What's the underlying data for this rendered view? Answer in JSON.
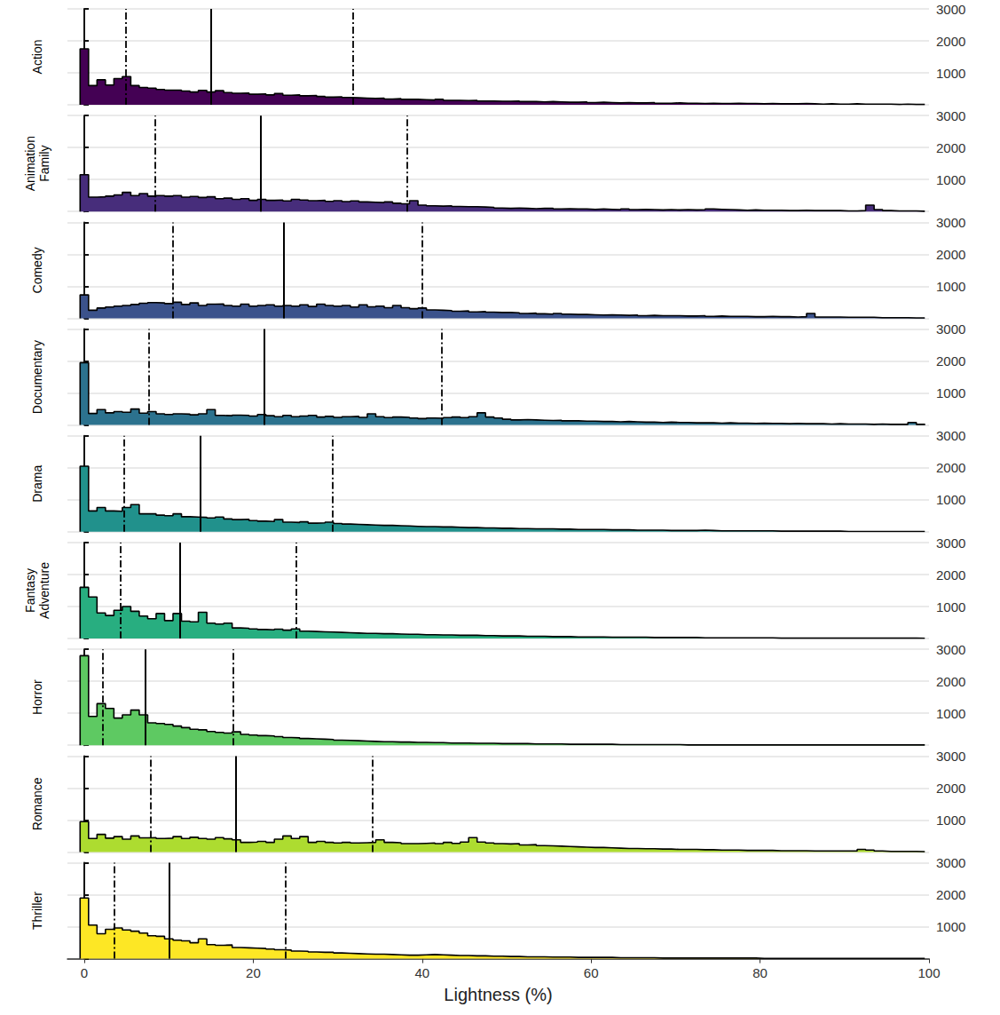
{
  "chart_data": {
    "type": "histogram",
    "x_label": "Lightness (%)",
    "xlim": [
      -2,
      100
    ],
    "xticks": [
      0,
      20,
      40,
      60,
      80,
      100
    ],
    "ylim": [
      0,
      3000
    ],
    "yticks": [
      1000,
      2000,
      3000
    ],
    "grid": true,
    "bins": [
      -0.5,
      0.5,
      1.5,
      2.5,
      3.5,
      4.5,
      5.5,
      6.5,
      7.5,
      8.5,
      9.5,
      10.5,
      11.5,
      12.5,
      13.5,
      14.5,
      15.5,
      16.5,
      17.5,
      18.5,
      19.5,
      20.5,
      21.5,
      22.5,
      23.5,
      24.5,
      25.5,
      26.5,
      27.5,
      28.5,
      29.5,
      30.5,
      31.5,
      32.5,
      33.5,
      34.5,
      35.5,
      36.5,
      37.5,
      38.5,
      39.5,
      40.5,
      41.5,
      42.5,
      43.5,
      44.5,
      45.5,
      46.5,
      47.5,
      48.5,
      49.5,
      50.5,
      51.5,
      52.5,
      53.5,
      54.5,
      55.5,
      56.5,
      57.5,
      58.5,
      59.5,
      60.5,
      61.5,
      62.5,
      63.5,
      64.5,
      65.5,
      66.5,
      67.5,
      68.5,
      69.5,
      70.5,
      71.5,
      72.5,
      73.5,
      74.5,
      75.5,
      76.5,
      77.5,
      78.5,
      79.5,
      80.5,
      81.5,
      82.5,
      83.5,
      84.5,
      85.5,
      86.5,
      87.5,
      88.5,
      89.5,
      90.5,
      91.5,
      92.5,
      93.5,
      94.5,
      95.5,
      96.5,
      97.5,
      98.5,
      99.5
    ],
    "series": [
      {
        "name": "Action",
        "color": "#440154",
        "quartiles": [
          4.9,
          15.0,
          31.8
        ],
        "values": [
          1750,
          600,
          780,
          620,
          820,
          880,
          600,
          540,
          520,
          480,
          460,
          460,
          430,
          400,
          450,
          400,
          440,
          380,
          360,
          370,
          330,
          340,
          310,
          350,
          300,
          310,
          280,
          290,
          260,
          240,
          250,
          230,
          220,
          210,
          200,
          210,
          180,
          190,
          170,
          170,
          160,
          150,
          170,
          140,
          140,
          130,
          140,
          120,
          120,
          110,
          110,
          120,
          100,
          100,
          90,
          100,
          90,
          80,
          80,
          90,
          70,
          80,
          70,
          60,
          70,
          60,
          60,
          70,
          50,
          50,
          60,
          50,
          50,
          40,
          50,
          40,
          40,
          50,
          40,
          40,
          30,
          40,
          30,
          30,
          30,
          40,
          30,
          20,
          30,
          20,
          20,
          30,
          20,
          20,
          20,
          20,
          10,
          20,
          10,
          10
        ]
      },
      {
        "name": "Animation Family",
        "color": "#472d7b",
        "quartiles": [
          8.4,
          20.9,
          38.2
        ],
        "values": [
          1150,
          450,
          460,
          480,
          520,
          600,
          500,
          560,
          480,
          500,
          480,
          500,
          450,
          470,
          440,
          460,
          400,
          420,
          380,
          400,
          350,
          380,
          350,
          360,
          330,
          380,
          360,
          340,
          350,
          320,
          340,
          310,
          330,
          300,
          290,
          280,
          300,
          260,
          240,
          340,
          200,
          180,
          170,
          180,
          160,
          150,
          150,
          140,
          130,
          110,
          100,
          110,
          100,
          90,
          100,
          100,
          80,
          90,
          80,
          80,
          70,
          80,
          70,
          60,
          80,
          60,
          70,
          60,
          50,
          60,
          50,
          60,
          50,
          60,
          80,
          70,
          60,
          50,
          40,
          50,
          40,
          40,
          40,
          30,
          30,
          40,
          30,
          30,
          30,
          30,
          20,
          20,
          30,
          200,
          60,
          30,
          20,
          20,
          20,
          10
        ]
      },
      {
        "name": "Comedy",
        "color": "#3b528b",
        "quartiles": [
          10.5,
          23.6,
          40.0
        ],
        "values": [
          730,
          250,
          320,
          350,
          380,
          400,
          430,
          470,
          490,
          480,
          460,
          500,
          430,
          480,
          400,
          440,
          450,
          400,
          380,
          440,
          380,
          400,
          420,
          380,
          400,
          380,
          420,
          370,
          440,
          400,
          380,
          400,
          350,
          420,
          360,
          380,
          330,
          400,
          330,
          300,
          320,
          260,
          250,
          240,
          220,
          230,
          200,
          210,
          190,
          180,
          180,
          170,
          150,
          160,
          140,
          130,
          150,
          130,
          120,
          120,
          110,
          100,
          110,
          100,
          90,
          100,
          80,
          90,
          80,
          80,
          80,
          70,
          70,
          80,
          60,
          70,
          60,
          60,
          60,
          50,
          50,
          60,
          50,
          50,
          40,
          50,
          150,
          40,
          40,
          40,
          30,
          30,
          30,
          30,
          20,
          20,
          20,
          20,
          10,
          10
        ]
      },
      {
        "name": "Documentary",
        "color": "#2c728e",
        "quartiles": [
          7.6,
          21.3,
          42.3
        ],
        "values": [
          1950,
          360,
          480,
          380,
          420,
          400,
          500,
          370,
          420,
          350,
          330,
          350,
          340,
          320,
          350,
          480,
          300,
          290,
          310,
          300,
          280,
          330,
          290,
          260,
          300,
          260,
          280,
          300,
          250,
          270,
          240,
          260,
          270,
          240,
          350,
          260,
          230,
          250,
          240,
          220,
          200,
          220,
          210,
          230,
          250,
          230,
          260,
          380,
          250,
          220,
          180,
          160,
          170,
          160,
          150,
          140,
          150,
          130,
          130,
          120,
          120,
          110,
          110,
          100,
          110,
          100,
          90,
          90,
          80,
          90,
          80,
          80,
          70,
          70,
          70,
          60,
          70,
          60,
          60,
          50,
          60,
          50,
          50,
          40,
          50,
          40,
          40,
          40,
          30,
          40,
          30,
          30,
          30,
          20,
          30,
          20,
          20,
          20,
          80,
          20
        ]
      },
      {
        "name": "Drama",
        "color": "#21918c",
        "quartiles": [
          4.7,
          13.7,
          29.4
        ],
        "values": [
          2050,
          650,
          760,
          650,
          640,
          760,
          850,
          560,
          560,
          520,
          500,
          560,
          470,
          460,
          450,
          430,
          460,
          400,
          380,
          390,
          350,
          330,
          320,
          380,
          300,
          290,
          310,
          270,
          280,
          300,
          260,
          240,
          230,
          220,
          210,
          200,
          200,
          190,
          180,
          170,
          160,
          160,
          150,
          150,
          140,
          130,
          130,
          120,
          120,
          110,
          110,
          100,
          100,
          90,
          90,
          90,
          80,
          80,
          70,
          70,
          70,
          70,
          60,
          60,
          60,
          50,
          50,
          50,
          50,
          40,
          40,
          40,
          40,
          50,
          40,
          30,
          30,
          30,
          30,
          30,
          30,
          30,
          20,
          20,
          20,
          20,
          20,
          20,
          20,
          20,
          10,
          10,
          10,
          10,
          10,
          10,
          10,
          10,
          10,
          10
        ]
      },
      {
        "name": "Fantasy Adventure",
        "color": "#28ae80",
        "quartiles": [
          4.3,
          11.3,
          25.1
        ],
        "values": [
          1600,
          1300,
          800,
          720,
          880,
          1000,
          850,
          700,
          620,
          780,
          560,
          780,
          540,
          520,
          820,
          480,
          450,
          480,
          330,
          320,
          300,
          280,
          270,
          290,
          260,
          300,
          230,
          220,
          210,
          200,
          190,
          180,
          170,
          160,
          160,
          150,
          150,
          140,
          130,
          130,
          120,
          120,
          110,
          110,
          100,
          100,
          100,
          90,
          90,
          80,
          80,
          80,
          70,
          70,
          70,
          60,
          60,
          60,
          50,
          50,
          50,
          50,
          40,
          40,
          40,
          40,
          40,
          30,
          30,
          30,
          30,
          30,
          30,
          20,
          20,
          20,
          20,
          20,
          20,
          20,
          20,
          20,
          10,
          10,
          10,
          10,
          10,
          10,
          10,
          10,
          10,
          10,
          10,
          10,
          10,
          10,
          10,
          10,
          10,
          5
        ]
      },
      {
        "name": "Horror",
        "color": "#5ec962",
        "quartiles": [
          2.2,
          7.2,
          17.6
        ],
        "values": [
          2800,
          900,
          1300,
          1150,
          850,
          950,
          1100,
          950,
          700,
          680,
          650,
          600,
          550,
          500,
          480,
          430,
          400,
          380,
          420,
          340,
          320,
          300,
          290,
          270,
          240,
          230,
          210,
          200,
          190,
          180,
          160,
          150,
          140,
          130,
          120,
          110,
          110,
          100,
          100,
          90,
          90,
          80,
          80,
          70,
          70,
          70,
          60,
          60,
          60,
          50,
          50,
          50,
          50,
          40,
          40,
          40,
          40,
          30,
          30,
          30,
          30,
          30,
          30,
          20,
          20,
          20,
          20,
          20,
          20,
          20,
          20,
          10,
          10,
          10,
          10,
          10,
          10,
          10,
          10,
          10,
          10,
          10,
          10,
          10,
          10,
          10,
          10,
          10,
          10,
          10,
          10,
          10,
          10,
          10,
          10,
          10,
          10,
          10,
          10,
          10
        ]
      },
      {
        "name": "Romance",
        "color": "#addc30",
        "quartiles": [
          7.9,
          17.9,
          34.1
        ],
        "values": [
          950,
          420,
          550,
          430,
          480,
          400,
          500,
          440,
          450,
          420,
          430,
          480,
          420,
          460,
          420,
          400,
          450,
          410,
          380,
          300,
          310,
          330,
          300,
          400,
          500,
          420,
          480,
          300,
          330,
          300,
          280,
          300,
          280,
          290,
          300,
          380,
          300,
          290,
          260,
          260,
          270,
          280,
          260,
          300,
          270,
          310,
          450,
          310,
          280,
          260,
          250,
          260,
          220,
          230,
          200,
          190,
          180,
          170,
          160,
          150,
          140,
          140,
          130,
          120,
          110,
          110,
          100,
          100,
          90,
          90,
          80,
          80,
          80,
          70,
          70,
          60,
          60,
          60,
          50,
          50,
          50,
          50,
          40,
          40,
          40,
          40,
          30,
          30,
          30,
          30,
          30,
          30,
          80,
          60,
          30,
          20,
          20,
          20,
          20,
          10
        ]
      },
      {
        "name": "Thriller",
        "color": "#fde725",
        "quartiles": [
          3.5,
          10.1,
          23.8
        ],
        "values": [
          1900,
          1050,
          780,
          920,
          960,
          900,
          860,
          800,
          720,
          700,
          620,
          580,
          560,
          500,
          620,
          440,
          420,
          430,
          350,
          340,
          330,
          320,
          300,
          280,
          270,
          240,
          230,
          210,
          200,
          200,
          180,
          170,
          160,
          150,
          140,
          140,
          130,
          120,
          110,
          110,
          120,
          130,
          120,
          110,
          100,
          100,
          90,
          90,
          80,
          80,
          70,
          70,
          60,
          60,
          60,
          50,
          50,
          50,
          40,
          40,
          40,
          40,
          40,
          30,
          30,
          30,
          30,
          30,
          20,
          20,
          20,
          20,
          20,
          20,
          20,
          20,
          20,
          20,
          20,
          20,
          10,
          10,
          10,
          10,
          10,
          10,
          10,
          10,
          10,
          10,
          10,
          10,
          10,
          10,
          10,
          10,
          10,
          10,
          10,
          10
        ]
      }
    ]
  }
}
